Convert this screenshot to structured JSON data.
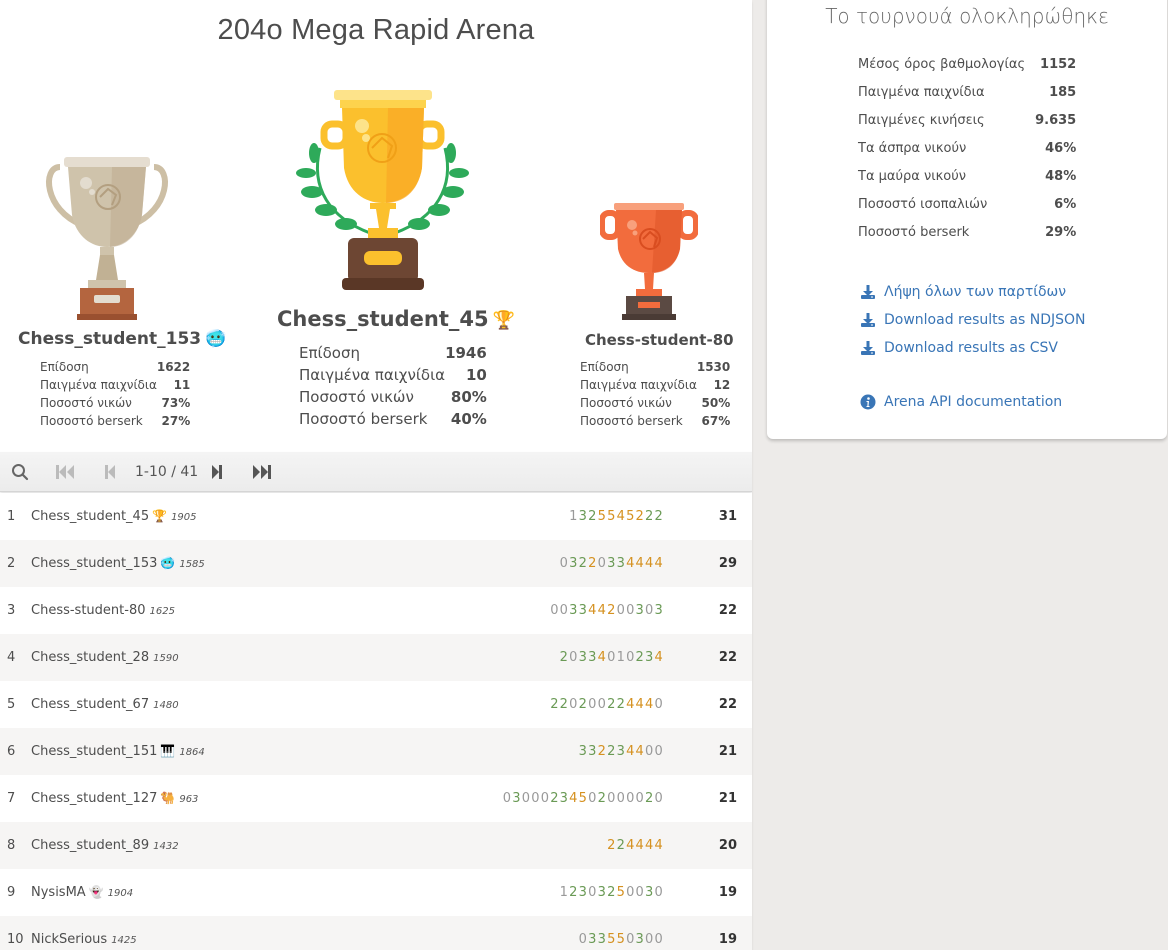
{
  "tournament": {
    "title": "204o Mega Rapid Arena"
  },
  "podium": {
    "second": {
      "name": "Chess_student_153",
      "flair": "🥶",
      "stats": [
        {
          "label": "Επίδοση",
          "value": "1622"
        },
        {
          "label": "Παιγμένα παιχνίδια",
          "value": "11"
        },
        {
          "label": "Ποσοστό νικών",
          "value": "73%"
        },
        {
          "label": "Ποσοστό berserk",
          "value": "27%"
        }
      ]
    },
    "first": {
      "name": "Chess_student_45",
      "flair": "🏆",
      "stats": [
        {
          "label": "Επίδοση",
          "value": "1946"
        },
        {
          "label": "Παιγμένα παιχνίδια",
          "value": "10"
        },
        {
          "label": "Ποσοστό νικών",
          "value": "80%"
        },
        {
          "label": "Ποσοστό berserk",
          "value": "40%"
        }
      ]
    },
    "third": {
      "name": "Chess-student-80",
      "flair": "",
      "stats": [
        {
          "label": "Επίδοση",
          "value": "1530"
        },
        {
          "label": "Παιγμένα παιχνίδια",
          "value": "12"
        },
        {
          "label": "Ποσοστό νικών",
          "value": "50%"
        },
        {
          "label": "Ποσοστό berserk",
          "value": "67%"
        }
      ]
    }
  },
  "pager": {
    "range": "1-10 / 41",
    "icons": [
      "search-icon",
      "first-page-icon",
      "prev-page-icon",
      "next-page-icon",
      "last-page-icon"
    ]
  },
  "standings": [
    {
      "rank": "1",
      "name": "Chess_student_45",
      "flair": "🏆",
      "rating": "1905",
      "sheet": [
        [
          "1",
          "d"
        ],
        [
          "3",
          "w"
        ],
        [
          "2",
          "w"
        ],
        [
          "5",
          "s"
        ],
        [
          "5",
          "s"
        ],
        [
          "4",
          "s"
        ],
        [
          "5",
          "s"
        ],
        [
          "2",
          "s"
        ],
        [
          "2",
          "w"
        ],
        [
          "2",
          "w"
        ]
      ],
      "total": "31"
    },
    {
      "rank": "2",
      "name": "Chess_student_153",
      "flair": "🥶",
      "rating": "1585",
      "sheet": [
        [
          "0",
          "l"
        ],
        [
          "3",
          "w"
        ],
        [
          "2",
          "w"
        ],
        [
          "2",
          "s"
        ],
        [
          "0",
          "l"
        ],
        [
          "3",
          "w"
        ],
        [
          "3",
          "w"
        ],
        [
          "4",
          "s"
        ],
        [
          "4",
          "s"
        ],
        [
          "4",
          "s"
        ],
        [
          "4",
          "s"
        ]
      ],
      "total": "29"
    },
    {
      "rank": "3",
      "name": "Chess-student-80",
      "flair": "",
      "rating": "1625",
      "sheet": [
        [
          "0",
          "l"
        ],
        [
          "0",
          "l"
        ],
        [
          "3",
          "w"
        ],
        [
          "3",
          "w"
        ],
        [
          "4",
          "s"
        ],
        [
          "4",
          "s"
        ],
        [
          "2",
          "s"
        ],
        [
          "0",
          "l"
        ],
        [
          "0",
          "l"
        ],
        [
          "3",
          "w"
        ],
        [
          "0",
          "l"
        ],
        [
          "3",
          "w"
        ]
      ],
      "total": "22"
    },
    {
      "rank": "4",
      "name": "Chess_student_28",
      "flair": "",
      "rating": "1590",
      "sheet": [
        [
          "2",
          "w"
        ],
        [
          "0",
          "l"
        ],
        [
          "3",
          "w"
        ],
        [
          "3",
          "w"
        ],
        [
          "4",
          "s"
        ],
        [
          "0",
          "l"
        ],
        [
          "1",
          "d"
        ],
        [
          "0",
          "l"
        ],
        [
          "2",
          "w"
        ],
        [
          "3",
          "w"
        ],
        [
          "4",
          "s"
        ]
      ],
      "total": "22"
    },
    {
      "rank": "5",
      "name": "Chess_student_67",
      "flair": "",
      "rating": "1480",
      "sheet": [
        [
          "2",
          "w"
        ],
        [
          "2",
          "w"
        ],
        [
          "0",
          "l"
        ],
        [
          "2",
          "w"
        ],
        [
          "0",
          "l"
        ],
        [
          "0",
          "l"
        ],
        [
          "2",
          "w"
        ],
        [
          "2",
          "w"
        ],
        [
          "4",
          "s"
        ],
        [
          "4",
          "s"
        ],
        [
          "4",
          "s"
        ],
        [
          "0",
          "l"
        ]
      ],
      "total": "22"
    },
    {
      "rank": "6",
      "name": "Chess_student_151",
      "flair": "🎹",
      "rating": "1864",
      "sheet": [
        [
          "3",
          "w"
        ],
        [
          "3",
          "w"
        ],
        [
          "2",
          "s"
        ],
        [
          "2",
          "w"
        ],
        [
          "3",
          "w"
        ],
        [
          "4",
          "s"
        ],
        [
          "4",
          "s"
        ],
        [
          "0",
          "l"
        ],
        [
          "0",
          "l"
        ]
      ],
      "total": "21"
    },
    {
      "rank": "7",
      "name": "Chess_student_127",
      "flair": "🐫",
      "rating": "963",
      "sheet": [
        [
          "0",
          "l"
        ],
        [
          "3",
          "w"
        ],
        [
          "0",
          "l"
        ],
        [
          "0",
          "l"
        ],
        [
          "0",
          "l"
        ],
        [
          "2",
          "w"
        ],
        [
          "3",
          "w"
        ],
        [
          "4",
          "s"
        ],
        [
          "5",
          "s"
        ],
        [
          "0",
          "l"
        ],
        [
          "2",
          "w"
        ],
        [
          "0",
          "l"
        ],
        [
          "0",
          "l"
        ],
        [
          "0",
          "l"
        ],
        [
          "0",
          "l"
        ],
        [
          "2",
          "w"
        ],
        [
          "0",
          "l"
        ]
      ],
      "total": "21"
    },
    {
      "rank": "8",
      "name": "Chess_student_89",
      "flair": "",
      "rating": "1432",
      "sheet": [
        [
          "2",
          "s"
        ],
        [
          "2",
          "w"
        ],
        [
          "4",
          "s"
        ],
        [
          "4",
          "s"
        ],
        [
          "4",
          "s"
        ],
        [
          "4",
          "s"
        ]
      ],
      "total": "20"
    },
    {
      "rank": "9",
      "name": "NysisMA",
      "flair": "👻",
      "rating": "1904",
      "sheet": [
        [
          "1",
          "d"
        ],
        [
          "2",
          "w"
        ],
        [
          "3",
          "w"
        ],
        [
          "0",
          "l"
        ],
        [
          "3",
          "w"
        ],
        [
          "2",
          "w"
        ],
        [
          "5",
          "s"
        ],
        [
          "0",
          "l"
        ],
        [
          "0",
          "l"
        ],
        [
          "3",
          "w"
        ],
        [
          "0",
          "l"
        ]
      ],
      "total": "19"
    },
    {
      "rank": "10",
      "name": "NickSerious",
      "flair": "",
      "rating": "1425",
      "sheet": [
        [
          "0",
          "l"
        ],
        [
          "3",
          "w"
        ],
        [
          "3",
          "w"
        ],
        [
          "5",
          "s"
        ],
        [
          "5",
          "s"
        ],
        [
          "0",
          "l"
        ],
        [
          "3",
          "w"
        ],
        [
          "0",
          "l"
        ],
        [
          "0",
          "l"
        ]
      ],
      "total": "19"
    }
  ],
  "sidebar": {
    "title": "Το τουρνουά ολοκληρώθηκε",
    "stats": [
      {
        "label": "Μέσος όρος βαθμολογίας",
        "value": "1152"
      },
      {
        "label": "Παιγμένα παιχνίδια",
        "value": "185"
      },
      {
        "label": "Παιγμένες κινήσεις",
        "value": "9.635"
      },
      {
        "label": "Τα άσπρα νικούν",
        "value": "46%"
      },
      {
        "label": "Τα μαύρα νικούν",
        "value": "48%"
      },
      {
        "label": "Ποσοστό ισοπαλιών",
        "value": "6%"
      },
      {
        "label": "Ποσοστό berserk",
        "value": "29%"
      }
    ],
    "links": [
      {
        "label": "Λήψη όλων των παρτίδων",
        "icon": "download-icon"
      },
      {
        "label": "Download results as NDJSON",
        "icon": "download-icon"
      },
      {
        "label": "Download results as CSV",
        "icon": "download-icon"
      },
      {
        "label": "Arena API documentation",
        "icon": "info-icon"
      }
    ]
  },
  "colors": {
    "link": "#3975b6",
    "win": "#6a9a55",
    "streak": "#d59120",
    "loss": "#999999",
    "gold": "#fbc02d",
    "silver": "#cfc3ab",
    "bronze": "#f26c3d"
  }
}
